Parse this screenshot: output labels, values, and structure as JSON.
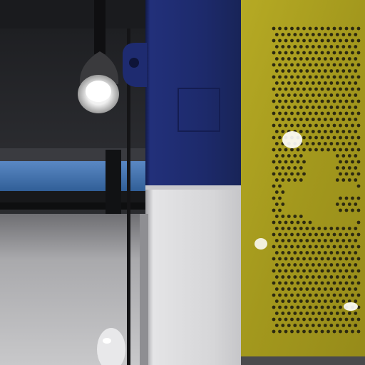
{
  "scene": {
    "colors": {
      "background_dark": "#242528",
      "ceiling": "#1c1d20",
      "window_blue": "#3d6fa8",
      "floor_grey": "#b9b9bb",
      "column_navy": "#1d2a6b",
      "column_white": "#d9d9db",
      "panel_yellow": "#a59a1f",
      "panel_hole": "#2d2a10",
      "lamp_light": "#f2f2f2"
    },
    "icons": {
      "lamp": "ceiling-spotlight-icon",
      "perforated_panel": "perforated-metal-panel",
      "mannequin": "mannequin-head-icon"
    }
  }
}
